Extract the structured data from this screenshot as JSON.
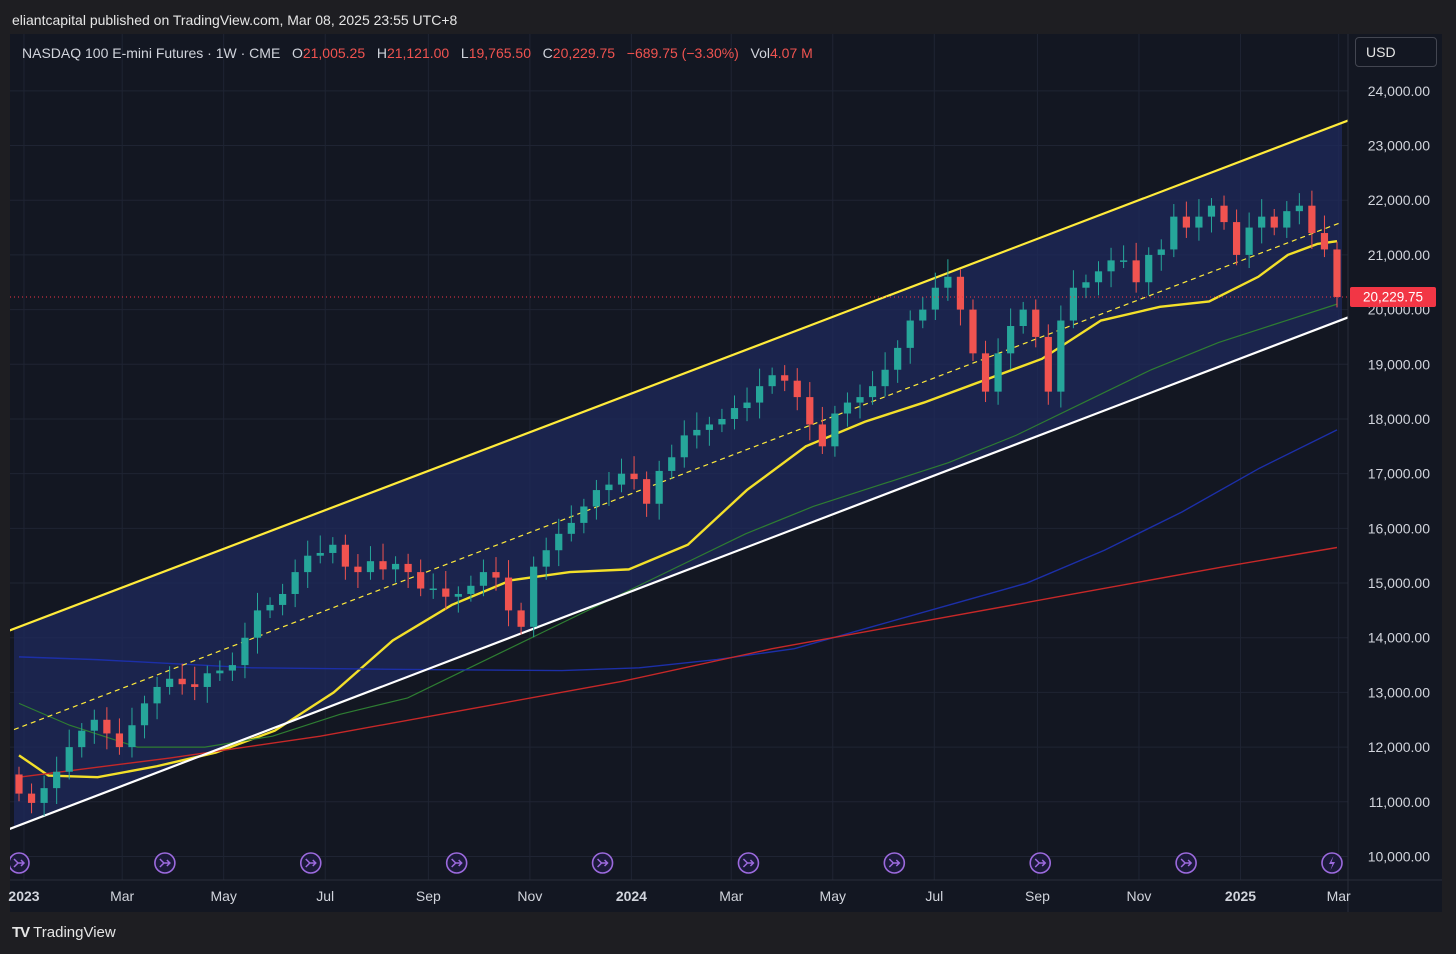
{
  "header": {
    "published": "eliantcapital published on TradingView.com, Mar 08, 2025 23:55 UTC+8"
  },
  "legend": {
    "symbol": "NASDAQ 100 E-mini Futures · 1W · CME",
    "o_label": "O",
    "o_value": "21,005.25",
    "h_label": "H",
    "h_value": "21,121.00",
    "l_label": "L",
    "l_value": "19,765.50",
    "c_label": "C",
    "c_value": "20,229.75",
    "change": "−689.75 (−3.30%)",
    "vol_label": "Vol",
    "vol_value": "4.07 M"
  },
  "currency": "USD",
  "footer": {
    "brand": "TradingView",
    "logo_glyph": "TV"
  },
  "colors": {
    "up": "#26a69a",
    "down": "#f05350",
    "channel_top": "#ffeb3b",
    "channel_bottom": "#ffffff",
    "ma_yellow": "#f3e02a",
    "ma_green": "#2e7d32",
    "ma_blue": "#1c2fa8",
    "ma_red": "#c62828",
    "channel_fill": "#1f2a5c"
  },
  "chart_data": {
    "type": "candlestick",
    "interval": "1W",
    "ylim": [
      10000,
      24500
    ],
    "y_ticks": [
      10000,
      11000,
      12000,
      13000,
      14000,
      15000,
      16000,
      17000,
      18000,
      19000,
      20000,
      21000,
      22000,
      23000,
      24000
    ],
    "y_tick_labels": [
      "10,000.00",
      "11,000.00",
      "12,000.00",
      "13,000.00",
      "14,000.00",
      "15,000.00",
      "16,000.00",
      "17,000.00",
      "18,000.00",
      "19,000.00",
      "20,000.00",
      "21,000.00",
      "22,000.00",
      "23,000.00",
      "24,000.00"
    ],
    "x_start": "2022-12-26",
    "x_end": "2025-03-03",
    "x_labels": [
      {
        "date": "2023-01-01",
        "label": "2023",
        "bold": true
      },
      {
        "date": "2023-03-01",
        "label": "Mar"
      },
      {
        "date": "2023-05-01",
        "label": "May"
      },
      {
        "date": "2023-07-01",
        "label": "Jul"
      },
      {
        "date": "2023-09-01",
        "label": "Sep"
      },
      {
        "date": "2023-11-01",
        "label": "Nov"
      },
      {
        "date": "2024-01-01",
        "label": "2024",
        "bold": true
      },
      {
        "date": "2024-03-01",
        "label": "Mar"
      },
      {
        "date": "2024-05-01",
        "label": "May"
      },
      {
        "date": "2024-07-01",
        "label": "Jul"
      },
      {
        "date": "2024-09-01",
        "label": "Sep"
      },
      {
        "date": "2024-11-01",
        "label": "Nov"
      },
      {
        "date": "2025-01-01",
        "label": "2025",
        "bold": true
      },
      {
        "date": "2025-03-01",
        "label": "Mar"
      }
    ],
    "closes": [
      11150,
      10980,
      11250,
      11550,
      12000,
      12300,
      12500,
      12250,
      12000,
      12400,
      12800,
      13100,
      13250,
      13150,
      13100,
      13350,
      13400,
      13500,
      14000,
      14500,
      14600,
      14800,
      15200,
      15500,
      15550,
      15700,
      15300,
      15200,
      15400,
      15250,
      15350,
      15200,
      14900,
      14900,
      14750,
      14800,
      14950,
      15200,
      15100,
      14500,
      14200,
      15300,
      15600,
      15900,
      16100,
      16400,
      16700,
      16800,
      17000,
      16900,
      16450,
      17050,
      17300,
      17700,
      17800,
      17900,
      18000,
      18200,
      18300,
      18600,
      18800,
      18700,
      18400,
      17900,
      17500,
      18100,
      18300,
      18400,
      18600,
      18900,
      19300,
      19800,
      20000,
      20400,
      20600,
      20000,
      19200,
      18500,
      19200,
      19700,
      20000,
      19500,
      18500,
      19800,
      20400,
      20500,
      20700,
      20900,
      20900,
      20500,
      21000,
      21100,
      21700,
      21500,
      21700,
      21900,
      21600,
      21000,
      21500,
      21700,
      21500,
      21800,
      21900,
      21400,
      21100,
      20230
    ],
    "last_price": "20,229.75",
    "channel": {
      "upper": [
        {
          "date": "2022-12-26",
          "value": 14150
        },
        {
          "date": "2025-03-03",
          "value": 23430
        }
      ],
      "middle": [
        {
          "date": "2022-12-26",
          "value": 12320
        },
        {
          "date": "2025-03-03",
          "value": 21600
        }
      ],
      "lower": [
        {
          "date": "2022-12-26",
          "value": 10520
        },
        {
          "date": "2025-03-03",
          "value": 19830
        }
      ]
    },
    "moving_averages": [
      {
        "color": "yellow",
        "points": [
          [
            0,
            11850
          ],
          [
            3,
            11480
          ],
          [
            8,
            11450
          ],
          [
            14,
            11650
          ],
          [
            20,
            11900
          ],
          [
            26,
            12300
          ],
          [
            32,
            13000
          ],
          [
            38,
            13950
          ],
          [
            44,
            14600
          ],
          [
            50,
            15050
          ],
          [
            56,
            15200
          ],
          [
            62,
            15250
          ],
          [
            68,
            15700
          ],
          [
            74,
            16700
          ],
          [
            80,
            17500
          ],
          [
            86,
            17950
          ],
          [
            92,
            18300
          ],
          [
            98,
            18700
          ],
          [
            104,
            19100
          ],
          [
            110,
            19800
          ],
          [
            116,
            20050
          ],
          [
            121,
            20150
          ],
          [
            126,
            20600
          ],
          [
            129,
            21000
          ],
          [
            132,
            21200
          ],
          [
            134,
            21250
          ]
        ]
      },
      {
        "color": "green",
        "points": [
          [
            0,
            12800
          ],
          [
            6,
            12400
          ],
          [
            14,
            12000
          ],
          [
            22,
            12000
          ],
          [
            30,
            12200
          ],
          [
            38,
            12600
          ],
          [
            46,
            12900
          ],
          [
            54,
            13500
          ],
          [
            62,
            14100
          ],
          [
            70,
            14700
          ],
          [
            78,
            15300
          ],
          [
            86,
            15900
          ],
          [
            94,
            16400
          ],
          [
            102,
            16800
          ],
          [
            110,
            17200
          ],
          [
            118,
            17700
          ],
          [
            126,
            18300
          ],
          [
            134,
            18900
          ],
          [
            142,
            19400
          ],
          [
            150,
            19800
          ],
          [
            156,
            20100
          ]
        ]
      },
      {
        "color": "blue",
        "points": [
          [
            0,
            13650
          ],
          [
            10,
            13600
          ],
          [
            30,
            13450
          ],
          [
            50,
            13420
          ],
          [
            70,
            13400
          ],
          [
            80,
            13450
          ],
          [
            90,
            13600
          ],
          [
            100,
            13800
          ],
          [
            110,
            14200
          ],
          [
            120,
            14600
          ],
          [
            130,
            15000
          ],
          [
            140,
            15600
          ],
          [
            150,
            16300
          ],
          [
            160,
            17100
          ],
          [
            170,
            17800
          ]
        ]
      },
      {
        "color": "red",
        "points": [
          [
            0,
            11450
          ],
          [
            20,
            11800
          ],
          [
            40,
            12200
          ],
          [
            60,
            12700
          ],
          [
            80,
            13200
          ],
          [
            100,
            13800
          ],
          [
            120,
            14300
          ],
          [
            140,
            14800
          ],
          [
            160,
            15300
          ],
          [
            175,
            15650
          ]
        ]
      }
    ],
    "event_markers": 10
  }
}
